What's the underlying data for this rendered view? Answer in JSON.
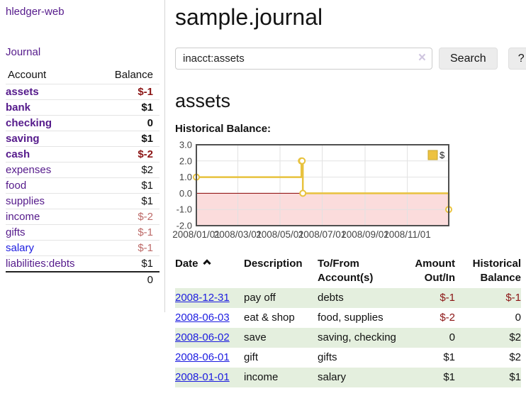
{
  "sidebar": {
    "app_link": "hledger-web",
    "journal_link": "Journal",
    "accounts": {
      "header_account": "Account",
      "header_balance": "Balance",
      "rows": [
        {
          "account": "assets",
          "balance": "$-1"
        },
        {
          "account": "bank",
          "balance": "$1"
        },
        {
          "account": "checking",
          "balance": "0"
        },
        {
          "account": "saving",
          "balance": "$1"
        },
        {
          "account": "cash",
          "balance": "$-2"
        },
        {
          "account": "expenses",
          "balance": "$2"
        },
        {
          "account": "food",
          "balance": "$1"
        },
        {
          "account": "supplies",
          "balance": "$1"
        },
        {
          "account": "income",
          "balance": "$-2"
        },
        {
          "account": "gifts",
          "balance": "$-1"
        },
        {
          "account": "salary",
          "balance": "$-1"
        },
        {
          "account": "liabilities:debts",
          "balance": "$1"
        }
      ],
      "total": "0"
    }
  },
  "main": {
    "title": "sample.journal",
    "search": {
      "value": "inacct:assets",
      "clear_icon": "×",
      "button_label": "Search",
      "help_label": "?"
    },
    "account_heading": "assets"
  },
  "chart_data": {
    "type": "line",
    "title": "Historical Balance:",
    "xlabel": "",
    "ylabel": "",
    "ylim": [
      -2,
      3
    ],
    "grid": true,
    "legend_position": "top-right",
    "legend": [
      {
        "label": "$",
        "color": "#edc240",
        "border": "#c8a52e"
      }
    ],
    "yticks": [
      3,
      2,
      1,
      0,
      -1,
      -2
    ],
    "ytick_labels": [
      "3.0",
      "2.0",
      "1.0",
      "0.0",
      "-1.0",
      "-2.0"
    ],
    "xticks": [
      {
        "label": "2008/01/01",
        "f": 0
      },
      {
        "label": "2008/03/01",
        "f": 0.1644
      },
      {
        "label": "2008/05/01",
        "f": 0.3315
      },
      {
        "label": "2008/07/01",
        "f": 0.4986
      },
      {
        "label": "2008/09/01",
        "f": 0.6685
      },
      {
        "label": "2008/11/01",
        "f": 0.8356
      }
    ],
    "series": [
      {
        "name": "$",
        "color": "#e8c23e",
        "step": true,
        "points": [
          {
            "x": "2008-01-01",
            "f": 0,
            "y": 1
          },
          {
            "x": "2008-06-01",
            "f": 0.4164,
            "y": 2
          },
          {
            "x": "2008-06-02",
            "f": 0.4192,
            "y": 2
          },
          {
            "x": "2008-06-03",
            "f": 0.4219,
            "y": 0
          },
          {
            "x": "2008-12-31",
            "f": 1,
            "y": -1
          }
        ]
      }
    ],
    "negative_fill": "#fbdcdc",
    "zero_line_color": "#8b0000",
    "border_color": "#4f4f4f",
    "gridline_color": "#e2e2e2",
    "tick_label_color": "#444444"
  },
  "register": {
    "headers": {
      "date": "Date",
      "description": "Description",
      "accounts": "To/From Account(s)",
      "amount": "Amount Out/In",
      "balance": "Historical Balance"
    },
    "sort_icon": "chevron-up",
    "rows": [
      {
        "date": "2008-12-31",
        "description": "pay off",
        "accounts": "debts",
        "amount": "$-1",
        "balance": "$-1"
      },
      {
        "date": "2008-06-03",
        "description": "eat & shop",
        "accounts": "food, supplies",
        "amount": "$-2",
        "balance": "0"
      },
      {
        "date": "2008-06-02",
        "description": "save",
        "accounts": "saving, checking",
        "amount": "0",
        "balance": "$2"
      },
      {
        "date": "2008-06-01",
        "description": "gift",
        "accounts": "gifts",
        "amount": "$1",
        "balance": "$2"
      },
      {
        "date": "2008-01-01",
        "description": "income",
        "accounts": "salary",
        "amount": "$1",
        "balance": "$1"
      }
    ]
  },
  "colors": {
    "link_purple": "#551a8b",
    "link_blue": "#1c1ce0",
    "negative_strong": "#8b1414",
    "negative_soft": "#bd6a68",
    "row_shade_green": "#e4efde"
  }
}
